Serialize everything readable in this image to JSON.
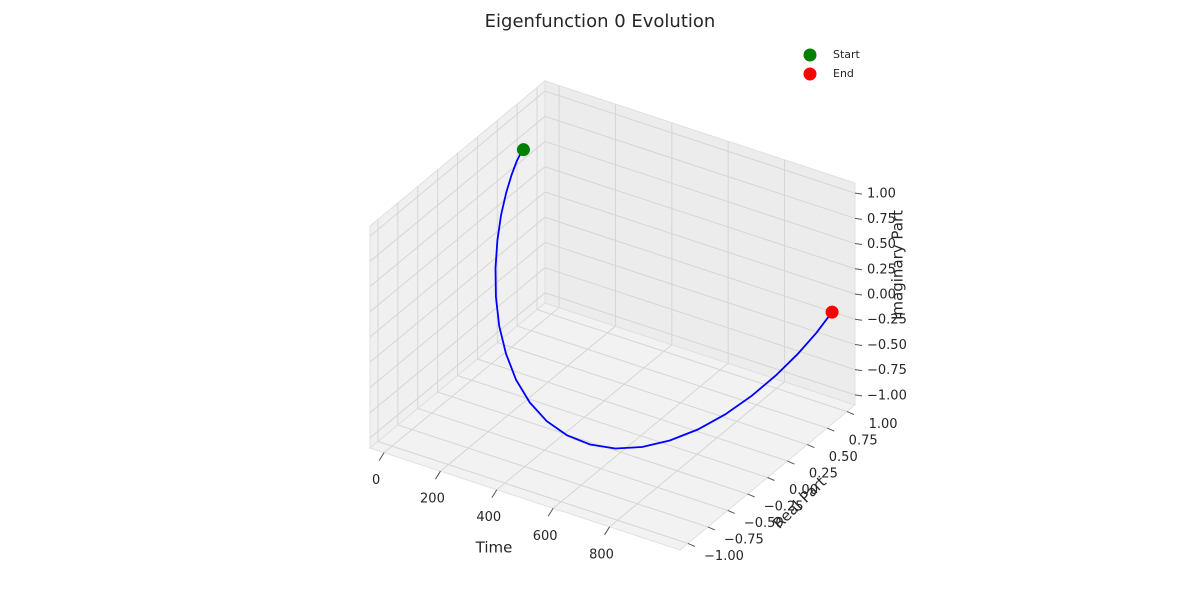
{
  "chart_data": {
    "type": "line3d",
    "title": "Eigenfunction 0 Evolution",
    "xlabel": "Time",
    "ylabel": "Real Part",
    "zlabel": "Imaginary Part",
    "xlim": [
      -50,
      1050
    ],
    "xticks": [
      0,
      200,
      400,
      600,
      800
    ],
    "ylim": [
      -1.1,
      1.1
    ],
    "yticks": [
      {
        "value": -1,
        "label": "−1.00"
      },
      {
        "value": -0.75,
        "label": "−0.75"
      },
      {
        "value": -0.5,
        "label": "−0.50"
      },
      {
        "value": -0.25,
        "label": "−0.25"
      },
      {
        "value": 0,
        "label": "0.00"
      },
      {
        "value": 0.25,
        "label": "0.25"
      },
      {
        "value": 0.5,
        "label": "0.50"
      },
      {
        "value": 0.75,
        "label": "0.75"
      },
      {
        "value": 1,
        "label": "1.00"
      }
    ],
    "zlim": [
      -1.1,
      1.1
    ],
    "zticks": [
      {
        "value": -1,
        "label": "−1.00"
      },
      {
        "value": -0.75,
        "label": "−0.75"
      },
      {
        "value": -0.5,
        "label": "−0.50"
      },
      {
        "value": -0.25,
        "label": "−0.25"
      },
      {
        "value": 0,
        "label": "0.00"
      },
      {
        "value": 0.25,
        "label": "0.25"
      },
      {
        "value": 0.5,
        "label": "0.50"
      },
      {
        "value": 0.75,
        "label": "0.75"
      },
      {
        "value": 1,
        "label": "1.00"
      }
    ],
    "grid": true,
    "legend": "upper right",
    "series": [
      {
        "color": "blue",
        "kind": "line",
        "x": [
          0,
          40,
          80,
          120,
          160,
          200,
          240,
          280,
          320,
          360,
          400,
          440,
          480,
          520,
          560,
          600,
          640,
          680,
          720,
          760,
          800,
          840,
          880,
          920,
          960,
          1000
        ],
        "y": [
          0.652,
          0.479,
          0.285,
          0.079,
          -0.132,
          -0.337,
          -0.526,
          -0.692,
          -0.828,
          -0.928,
          -0.985,
          -1.0,
          -0.97,
          -0.897,
          -0.784,
          -0.636,
          -0.461,
          -0.266,
          -0.059,
          0.151,
          0.355,
          0.545,
          0.707,
          0.838,
          0.933,
          0.989
        ],
        "z": [
          0.758,
          0.878,
          0.959,
          0.997,
          0.991,
          0.942,
          0.851,
          0.722,
          0.561,
          0.373,
          0.173,
          -0.038,
          -0.246,
          -0.443,
          -0.62,
          -0.771,
          -0.888,
          -0.964,
          -0.998,
          -0.989,
          -0.935,
          -0.839,
          -0.707,
          -0.545,
          -0.358,
          -0.153
        ]
      },
      {
        "name": "Start",
        "color": "green",
        "kind": "scatter",
        "x": [
          0
        ],
        "y": [
          0.652
        ],
        "z": [
          0.758
        ]
      },
      {
        "name": "End",
        "color": "red",
        "kind": "scatter",
        "x": [
          1000
        ],
        "y": [
          0.989
        ],
        "z": [
          -0.153
        ]
      }
    ]
  }
}
